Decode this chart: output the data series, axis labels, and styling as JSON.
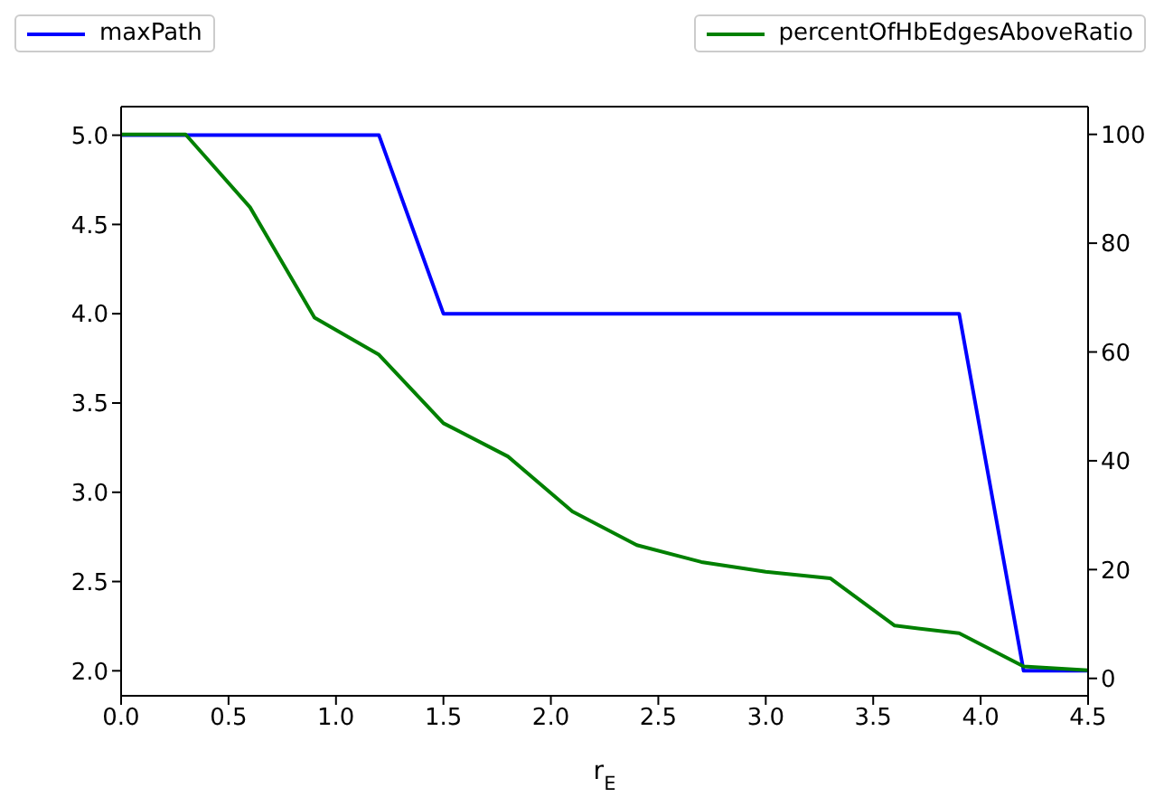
{
  "chart_data": {
    "type": "line",
    "xlabel": "r$_{E}$",
    "x": [
      0,
      0.3,
      0.6,
      0.9,
      1.2,
      1.5,
      1.8,
      2.1,
      2.4,
      2.7,
      3.0,
      3.3,
      3.6,
      3.9,
      4.2,
      4.5
    ],
    "series": [
      {
        "name": "maxPath",
        "color": "#0000ff",
        "values": [
          5,
          5,
          5,
          5,
          5,
          4,
          4,
          4,
          4,
          4,
          4,
          4,
          4,
          4,
          2,
          2
        ]
      },
      {
        "name": "percentOfHbEdgesAboveRatio",
        "color": "#008000",
        "axis": "y2",
        "values": [
          100,
          100,
          86.6,
          66.3,
          59.5,
          46.9,
          40.8,
          30.7,
          24.5,
          21.4,
          19.6,
          18.4,
          9.7,
          8.3,
          2.2,
          1.5
        ]
      }
    ],
    "xlim": [
      0,
      4.5
    ],
    "xticks": [
      {
        "value": 0,
        "label": "0.0"
      },
      {
        "value": 0.5,
        "label": "0.5"
      },
      {
        "value": 1,
        "label": "1.0"
      },
      {
        "value": 1.5,
        "label": "1.5"
      },
      {
        "value": 2,
        "label": "2.0"
      },
      {
        "value": 2.5,
        "label": "2.5"
      },
      {
        "value": 3,
        "label": "3.0"
      },
      {
        "value": 3.5,
        "label": "3.5"
      },
      {
        "value": 4,
        "label": "4.0"
      },
      {
        "value": 4.5,
        "label": "4.5"
      }
    ],
    "ylim": [
      1.86,
      5.16
    ],
    "yticks": [
      {
        "value": 2,
        "label": "2.0"
      },
      {
        "value": 2.5,
        "label": "2.5"
      },
      {
        "value": 3,
        "label": "3.0"
      },
      {
        "value": 3.5,
        "label": "3.5"
      },
      {
        "value": 4,
        "label": "4.0"
      },
      {
        "value": 4.5,
        "label": "4.5"
      },
      {
        "value": 5,
        "label": "5.0"
      }
    ],
    "y2lim": [
      -3.2,
      105.1
    ],
    "y2ticks": [
      0,
      20,
      40,
      60,
      80,
      100
    ],
    "legend": "top",
    "marker": "none",
    "line_style": "solid",
    "grid": false
  }
}
